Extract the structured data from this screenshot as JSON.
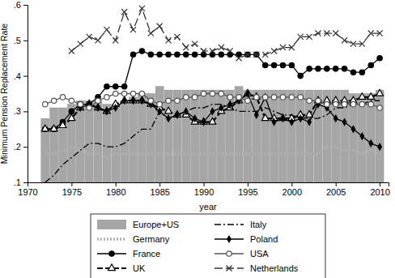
{
  "chart_data": {
    "type": "line",
    "x_label": "year",
    "y_label": "Minimum Pension Replacement Rate",
    "x": [
      1972,
      1973,
      1974,
      1975,
      1976,
      1977,
      1978,
      1979,
      1980,
      1981,
      1982,
      1983,
      1984,
      1985,
      1986,
      1987,
      1988,
      1989,
      1990,
      1991,
      1992,
      1993,
      1994,
      1995,
      1996,
      1997,
      1998,
      1999,
      2000,
      2001,
      2002,
      2003,
      2004,
      2005,
      2006,
      2007,
      2008,
      2009,
      2010
    ],
    "xlim": [
      1970,
      2011
    ],
    "xticks": [
      1970,
      1975,
      1980,
      1985,
      1990,
      1995,
      2000,
      2005,
      2010
    ],
    "ylim": [
      0.1,
      0.6
    ],
    "yticks": [
      {
        "value": 0.1,
        "label": ".1"
      },
      {
        "value": 0.2,
        "label": ".2"
      },
      {
        "value": 0.3,
        "label": ".3"
      },
      {
        "value": 0.4,
        "label": ".4"
      },
      {
        "value": 0.5,
        "label": ".5"
      },
      {
        "value": 0.6,
        "label": ".6"
      }
    ],
    "legend": "bottom",
    "series": [
      {
        "name": "Europe+US",
        "type": "bar",
        "color": "#a6a6a6",
        "values": [
          0.28,
          0.31,
          0.31,
          0.32,
          0.33,
          0.33,
          0.33,
          0.32,
          0.32,
          0.33,
          0.34,
          0.35,
          0.35,
          0.37,
          0.36,
          0.36,
          0.36,
          0.36,
          0.36,
          0.36,
          0.36,
          0.36,
          0.37,
          0.36,
          0.36,
          0.36,
          0.36,
          0.36,
          0.36,
          0.36,
          0.36,
          0.36,
          0.36,
          0.36,
          0.36,
          0.35,
          0.35,
          0.35,
          0.36
        ]
      },
      {
        "name": "Germany",
        "type": "line",
        "color": "#b0b0b0",
        "line_style": "dotted",
        "marker": "none",
        "values": [
          0.18,
          0.18,
          0.19,
          0.2,
          0.19,
          0.18,
          0.18,
          0.17,
          0.18,
          0.18,
          0.18,
          0.18,
          0.18,
          0.18,
          0.18,
          0.18,
          0.18,
          0.18,
          0.18,
          0.18,
          0.18,
          0.18,
          0.18,
          0.18,
          0.18,
          0.18,
          0.18,
          0.18,
          0.18,
          0.18,
          0.18,
          0.18,
          0.2,
          0.2,
          0.19,
          0.19,
          0.18,
          0.19,
          0.18
        ]
      },
      {
        "name": "France",
        "type": "line",
        "color": "#000000",
        "line_style": "solid",
        "marker": "circle",
        "values": [
          0.25,
          0.25,
          0.27,
          0.3,
          0.32,
          0.32,
          0.34,
          0.37,
          0.37,
          0.37,
          0.46,
          0.47,
          0.46,
          0.46,
          0.46,
          0.46,
          0.46,
          0.46,
          0.46,
          0.46,
          0.46,
          0.46,
          0.46,
          0.46,
          0.46,
          0.43,
          0.43,
          0.43,
          0.43,
          0.4,
          0.42,
          0.42,
          0.42,
          0.42,
          0.42,
          0.41,
          0.41,
          0.43,
          0.45
        ]
      },
      {
        "name": "UK",
        "type": "line",
        "color": "#000000",
        "line_style": "dashed",
        "marker": "triangle-open",
        "values": [
          0.25,
          0.25,
          0.26,
          0.28,
          0.31,
          0.32,
          0.31,
          0.3,
          0.32,
          0.33,
          0.33,
          0.33,
          0.32,
          0.31,
          0.3,
          0.29,
          0.29,
          0.27,
          0.27,
          0.27,
          0.3,
          0.31,
          0.33,
          0.35,
          0.34,
          0.28,
          0.28,
          0.28,
          0.28,
          0.29,
          0.29,
          0.33,
          0.33,
          0.33,
          0.33,
          0.33,
          0.34,
          0.34,
          0.35
        ]
      },
      {
        "name": "Italy",
        "type": "line",
        "color": "#000000",
        "line_style": "dashdot",
        "marker": "none",
        "values": [
          0.1,
          0.12,
          0.15,
          0.17,
          0.19,
          0.21,
          0.21,
          0.2,
          0.2,
          0.21,
          0.23,
          0.25,
          0.25,
          0.3,
          0.28,
          0.29,
          0.3,
          0.31,
          0.31,
          0.32,
          0.32,
          0.31,
          0.3,
          0.3,
          0.3,
          0.31,
          0.3,
          0.29,
          0.29,
          0.28,
          0.28,
          0.28,
          0.29,
          0.31,
          0.31,
          0.32,
          0.32,
          0.33,
          0.33
        ]
      },
      {
        "name": "Poland",
        "type": "line",
        "color": "#000000",
        "line_style": "solid",
        "marker": "diamond",
        "values": [
          null,
          null,
          null,
          null,
          0.31,
          0.32,
          0.31,
          0.3,
          0.31,
          0.33,
          0.33,
          0.33,
          0.32,
          0.3,
          0.28,
          0.29,
          0.3,
          0.28,
          0.27,
          0.3,
          0.31,
          0.32,
          0.33,
          0.35,
          0.29,
          0.34,
          0.27,
          0.28,
          0.27,
          0.28,
          0.27,
          0.32,
          0.31,
          0.28,
          0.27,
          0.25,
          0.23,
          0.21,
          0.2
        ]
      },
      {
        "name": "USA",
        "type": "line",
        "color": "#555555",
        "line_style": "solid",
        "marker": "circle-open",
        "values": [
          0.32,
          0.33,
          0.34,
          0.33,
          0.32,
          0.31,
          0.33,
          0.34,
          0.35,
          0.35,
          0.35,
          0.35,
          0.33,
          0.32,
          0.33,
          0.33,
          0.34,
          0.34,
          0.35,
          0.35,
          0.35,
          0.34,
          0.34,
          0.33,
          0.34,
          0.34,
          0.34,
          0.34,
          0.34,
          0.34,
          0.33,
          0.33,
          0.32,
          0.32,
          0.32,
          0.32,
          0.32,
          0.32,
          0.31
        ]
      },
      {
        "name": "Netherlands",
        "type": "line",
        "color": "#333333",
        "line_style": "longdash",
        "marker": "x",
        "values": [
          null,
          null,
          null,
          0.47,
          0.49,
          0.51,
          0.5,
          0.53,
          0.5,
          0.58,
          0.53,
          0.59,
          0.52,
          0.54,
          0.5,
          0.51,
          0.48,
          0.49,
          0.47,
          0.47,
          0.48,
          0.47,
          0.45,
          0.46,
          0.46,
          0.46,
          0.47,
          0.48,
          0.48,
          0.51,
          0.51,
          0.52,
          0.52,
          0.52,
          0.5,
          0.49,
          0.49,
          0.52,
          0.52
        ]
      }
    ]
  }
}
